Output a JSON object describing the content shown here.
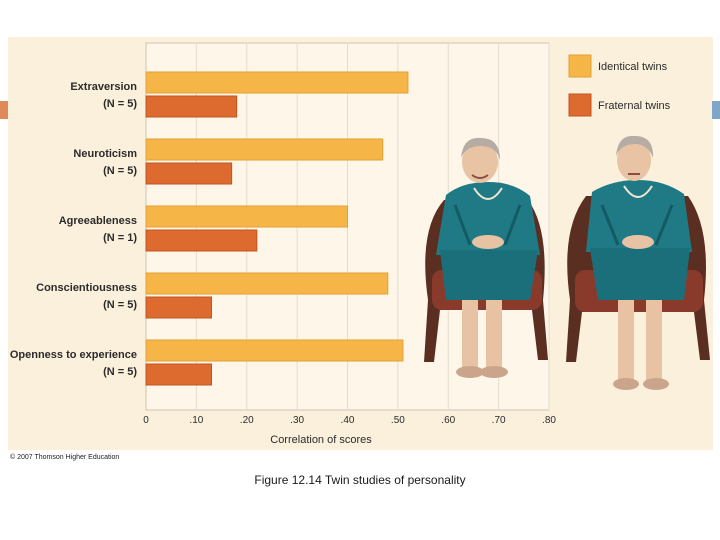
{
  "chart_data": {
    "type": "bar",
    "orientation": "horizontal",
    "categories": [
      {
        "name": "Extraversion",
        "n": "(N = 5)"
      },
      {
        "name": "Neuroticism",
        "n": "(N = 5)"
      },
      {
        "name": "Agreeableness",
        "n": "(N = 1)"
      },
      {
        "name": "Conscientiousness",
        "n": "(N = 5)"
      },
      {
        "name": "Openness to experience",
        "n": "(N = 5)"
      }
    ],
    "series": [
      {
        "name": "Identical twins",
        "color": "#f5b547",
        "values": [
          0.52,
          0.47,
          0.4,
          0.48,
          0.51
        ]
      },
      {
        "name": "Fraternal twins",
        "color": "#dd6a2f",
        "values": [
          0.18,
          0.17,
          0.22,
          0.13,
          0.13
        ]
      }
    ],
    "xlabel": "Correlation of scores",
    "xlim": [
      0,
      0.8
    ],
    "ticks": [
      {
        "value": 0,
        "label": "0"
      },
      {
        "value": 0.1,
        "label": ".10"
      },
      {
        "value": 0.2,
        "label": ".20"
      },
      {
        "value": 0.3,
        "label": ".30"
      },
      {
        "value": 0.4,
        "label": ".40"
      },
      {
        "value": 0.5,
        "label": ".50"
      },
      {
        "value": 0.6,
        "label": ".60"
      },
      {
        "value": 0.7,
        "label": ".70"
      },
      {
        "value": 0.8,
        "label": ".80"
      }
    ],
    "grid": true,
    "legend_position": "top-right"
  },
  "colors": {
    "panel_background": "#fbf0dc",
    "plot_background": "#fdf6e9",
    "gridline": "#e6dccb",
    "text": "#2b2b2b"
  },
  "illustration": {
    "description_icon": "twin-sisters-photo-icon"
  },
  "copyright": "© 2007 Thomson Higher Education",
  "caption": "Figure 12.14 Twin studies of personality"
}
